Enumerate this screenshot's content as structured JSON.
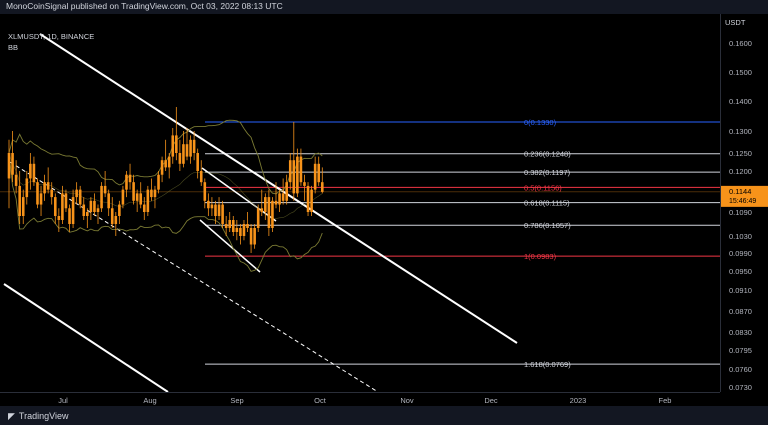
{
  "header": {
    "publisher_text": "MonoCoinSignal published on TradingView.com, Oct 03, 2022 08:13 UTC",
    "symbol_text": "XLMUSDT, 1D, BINANCE",
    "indicator_text": "BB",
    "currency": "USDT"
  },
  "footer": {
    "logo_text": "TradingView"
  },
  "colors": {
    "candle": "#f7931a",
    "bb_band": "#7a7a33",
    "trendline": "#ffffff",
    "fib_top": "#2962ff",
    "fib_red": "#f23645",
    "fib_white": "#d1d4dc",
    "price_badge": "#f7931a"
  },
  "chart_data": {
    "type": "candlestick",
    "price_axis": {
      "ticks": [
        "0.1600",
        "0.1500",
        "0.1400",
        "0.1300",
        "0.1250",
        "0.1200",
        "0.1090",
        "0.1030",
        "0.0990",
        "0.0950",
        "0.0910",
        "0.0870",
        "0.0830",
        "0.0795",
        "0.0760",
        "0.0730"
      ],
      "tick_values": [
        0.16,
        0.15,
        0.14,
        0.13,
        0.125,
        0.12,
        0.109,
        0.103,
        0.099,
        0.095,
        0.091,
        0.087,
        0.083,
        0.0795,
        0.076,
        0.073
      ]
    },
    "time_axis": {
      "labels": [
        "Jul",
        "Aug",
        "Sep",
        "Oct",
        "Nov",
        "Dec",
        "2023",
        "Feb"
      ]
    },
    "current_price": {
      "price": "0.1144",
      "countdown": "15:46:49"
    },
    "fib_levels": [
      {
        "ratio": "0",
        "price": "0.1330",
        "label": "0(0.1330)",
        "color": "blue"
      },
      {
        "ratio": "0.236",
        "price": "0.1248",
        "label": "0.236(0.1248)",
        "color": "white"
      },
      {
        "ratio": "0.382",
        "price": "0.1197",
        "label": "0.382(0.1197)",
        "color": "white"
      },
      {
        "ratio": "0.5",
        "price": "0.1156",
        "label": "0.5(0.1156)",
        "color": "red"
      },
      {
        "ratio": "0.618",
        "price": "0.1115",
        "label": "0.618(0.1115)",
        "color": "white"
      },
      {
        "ratio": "0.786",
        "price": "0.1057",
        "label": "0.786(0.1057)",
        "color": "white"
      },
      {
        "ratio": "1",
        "price": "0.0983",
        "label": "1(0.0983)",
        "color": "red"
      },
      {
        "ratio": "1.618",
        "price": "0.0769",
        "label": "1.618(0.0769)",
        "color": "white"
      }
    ],
    "candles": [
      [
        0.118,
        0.128,
        0.11,
        0.125
      ],
      [
        0.125,
        0.13,
        0.117,
        0.119
      ],
      [
        0.119,
        0.123,
        0.114,
        0.116
      ],
      [
        0.116,
        0.12,
        0.106,
        0.108
      ],
      [
        0.108,
        0.115,
        0.106,
        0.113
      ],
      [
        0.113,
        0.12,
        0.111,
        0.118
      ],
      [
        0.118,
        0.125,
        0.115,
        0.122
      ],
      [
        0.122,
        0.124,
        0.116,
        0.117
      ],
      [
        0.117,
        0.118,
        0.11,
        0.111
      ],
      [
        0.111,
        0.116,
        0.108,
        0.114
      ],
      [
        0.114,
        0.119,
        0.112,
        0.117
      ],
      [
        0.117,
        0.121,
        0.114,
        0.115
      ],
      [
        0.115,
        0.117,
        0.111,
        0.113
      ],
      [
        0.113,
        0.114,
        0.106,
        0.108
      ],
      [
        0.108,
        0.11,
        0.104,
        0.107
      ],
      [
        0.107,
        0.116,
        0.106,
        0.114
      ],
      [
        0.114,
        0.115,
        0.109,
        0.11
      ],
      [
        0.11,
        0.111,
        0.104,
        0.106
      ],
      [
        0.106,
        0.115,
        0.105,
        0.113
      ],
      [
        0.113,
        0.117,
        0.111,
        0.115
      ],
      [
        0.115,
        0.116,
        0.11,
        0.111
      ],
      [
        0.111,
        0.113,
        0.107,
        0.108
      ],
      [
        0.108,
        0.11,
        0.105,
        0.109
      ],
      [
        0.109,
        0.113,
        0.107,
        0.112
      ],
      [
        0.112,
        0.114,
        0.108,
        0.109
      ],
      [
        0.109,
        0.111,
        0.106,
        0.11
      ],
      [
        0.11,
        0.117,
        0.109,
        0.116
      ],
      [
        0.116,
        0.12,
        0.113,
        0.114
      ],
      [
        0.114,
        0.115,
        0.108,
        0.11
      ],
      [
        0.11,
        0.113,
        0.105,
        0.106
      ],
      [
        0.106,
        0.109,
        0.103,
        0.108
      ],
      [
        0.108,
        0.112,
        0.106,
        0.111
      ],
      [
        0.111,
        0.116,
        0.11,
        0.115
      ],
      [
        0.115,
        0.12,
        0.113,
        0.119
      ],
      [
        0.119,
        0.122,
        0.115,
        0.117
      ],
      [
        0.117,
        0.119,
        0.111,
        0.112
      ],
      [
        0.112,
        0.115,
        0.109,
        0.114
      ],
      [
        0.114,
        0.117,
        0.11,
        0.111
      ],
      [
        0.111,
        0.113,
        0.107,
        0.109
      ],
      [
        0.109,
        0.116,
        0.108,
        0.115
      ],
      [
        0.115,
        0.118,
        0.112,
        0.113
      ],
      [
        0.113,
        0.116,
        0.11,
        0.115
      ],
      [
        0.115,
        0.12,
        0.114,
        0.119
      ],
      [
        0.119,
        0.124,
        0.117,
        0.123
      ],
      [
        0.123,
        0.128,
        0.12,
        0.121
      ],
      [
        0.121,
        0.125,
        0.118,
        0.124
      ],
      [
        0.124,
        0.131,
        0.122,
        0.129
      ],
      [
        0.129,
        0.138,
        0.123,
        0.125
      ],
      [
        0.125,
        0.128,
        0.12,
        0.122
      ],
      [
        0.122,
        0.13,
        0.121,
        0.127
      ],
      [
        0.127,
        0.131,
        0.123,
        0.124
      ],
      [
        0.124,
        0.129,
        0.122,
        0.128
      ],
      [
        0.128,
        0.13,
        0.123,
        0.125
      ],
      [
        0.125,
        0.126,
        0.118,
        0.12
      ],
      [
        0.12,
        0.123,
        0.116,
        0.117
      ],
      [
        0.117,
        0.118,
        0.11,
        0.112
      ],
      [
        0.112,
        0.114,
        0.108,
        0.11
      ],
      [
        0.11,
        0.113,
        0.108,
        0.111
      ],
      [
        0.111,
        0.112,
        0.106,
        0.108
      ],
      [
        0.108,
        0.113,
        0.107,
        0.111
      ],
      [
        0.111,
        0.112,
        0.105,
        0.106
      ],
      [
        0.106,
        0.108,
        0.103,
        0.105
      ],
      [
        0.105,
        0.109,
        0.104,
        0.107
      ],
      [
        0.107,
        0.108,
        0.103,
        0.104
      ],
      [
        0.104,
        0.107,
        0.102,
        0.105
      ],
      [
        0.105,
        0.106,
        0.101,
        0.103
      ],
      [
        0.103,
        0.107,
        0.102,
        0.106
      ],
      [
        0.106,
        0.109,
        0.104,
        0.105
      ],
      [
        0.105,
        0.106,
        0.099,
        0.101
      ],
      [
        0.101,
        0.106,
        0.1,
        0.105
      ],
      [
        0.105,
        0.111,
        0.104,
        0.11
      ],
      [
        0.11,
        0.115,
        0.108,
        0.109
      ],
      [
        0.109,
        0.114,
        0.107,
        0.113
      ],
      [
        0.113,
        0.115,
        0.103,
        0.105
      ],
      [
        0.105,
        0.113,
        0.104,
        0.112
      ],
      [
        0.112,
        0.117,
        0.11,
        0.111
      ],
      [
        0.111,
        0.115,
        0.109,
        0.114
      ],
      [
        0.114,
        0.118,
        0.111,
        0.112
      ],
      [
        0.112,
        0.119,
        0.111,
        0.117
      ],
      [
        0.117,
        0.125,
        0.115,
        0.123
      ],
      [
        0.123,
        0.133,
        0.112,
        0.114
      ],
      [
        0.114,
        0.126,
        0.113,
        0.124
      ],
      [
        0.124,
        0.126,
        0.116,
        0.117
      ],
      [
        0.117,
        0.119,
        0.112,
        0.116
      ],
      [
        0.116,
        0.117,
        0.108,
        0.109
      ],
      [
        0.109,
        0.116,
        0.108,
        0.115
      ],
      [
        0.115,
        0.124,
        0.114,
        0.122
      ],
      [
        0.122,
        0.124,
        0.116,
        0.117
      ],
      [
        0.117,
        0.121,
        0.114,
        0.1144
      ]
    ]
  }
}
